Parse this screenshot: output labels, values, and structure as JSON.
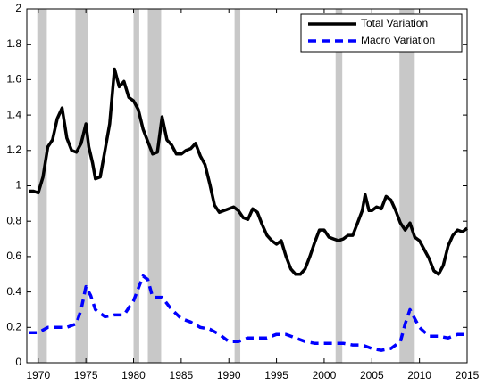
{
  "chart_data": {
    "type": "line",
    "xlim": [
      1968.8,
      2015
    ],
    "xticks": [
      1970,
      1975,
      1980,
      1985,
      1990,
      1995,
      2000,
      2005,
      2010,
      2015
    ],
    "ylim": [
      0,
      2
    ],
    "yticks": [
      0,
      0.2,
      0.4,
      0.6,
      0.8,
      1,
      1.2,
      1.4,
      1.6,
      1.8,
      2
    ],
    "legend": "upper-right",
    "shaded_color": "#c8c8c8",
    "shaded_periods": [
      [
        1969.9,
        1970.9
      ],
      [
        1973.9,
        1975.2
      ],
      [
        1980.0,
        1980.6
      ],
      [
        1981.5,
        1982.9
      ],
      [
        1990.6,
        1991.2
      ],
      [
        2001.2,
        2001.9
      ],
      [
        2007.9,
        2009.5
      ]
    ],
    "series": [
      {
        "name": "Total Variation",
        "color": "#000000",
        "dash": "solid",
        "x": [
          1969,
          1969.5,
          1970,
          1970.5,
          1971,
          1971.5,
          1972,
          1972.5,
          1973,
          1973.5,
          1974,
          1974.5,
          1975,
          1975.3,
          1975.7,
          1976,
          1976.5,
          1977,
          1977.5,
          1978,
          1978.5,
          1979,
          1979.5,
          1980,
          1980.5,
          1981,
          1981.5,
          1982,
          1982.5,
          1983,
          1983.5,
          1984,
          1984.5,
          1985,
          1985.5,
          1986,
          1986.5,
          1987,
          1987.5,
          1988,
          1988.5,
          1989,
          1989.5,
          1990,
          1990.5,
          1991,
          1991.5,
          1992,
          1992.5,
          1993,
          1993.5,
          1994,
          1994.5,
          1995,
          1995.5,
          1996,
          1996.5,
          1997,
          1997.5,
          1998,
          1998.5,
          1999,
          1999.5,
          2000,
          2000.5,
          2001,
          2001.5,
          2002,
          2002.5,
          2003,
          2003.5,
          2004,
          2004.3,
          2004.7,
          2005,
          2005.5,
          2006,
          2006.5,
          2007,
          2007.5,
          2008,
          2008.5,
          2009,
          2009.5,
          2010,
          2010.5,
          2011,
          2011.5,
          2012,
          2012.5,
          2013,
          2013.5,
          2014,
          2014.5,
          2015
        ],
        "values": [
          0.97,
          0.97,
          0.96,
          1.05,
          1.22,
          1.26,
          1.38,
          1.44,
          1.27,
          1.2,
          1.19,
          1.24,
          1.35,
          1.22,
          1.13,
          1.04,
          1.05,
          1.2,
          1.35,
          1.66,
          1.56,
          1.59,
          1.5,
          1.48,
          1.43,
          1.32,
          1.25,
          1.18,
          1.19,
          1.39,
          1.26,
          1.23,
          1.18,
          1.18,
          1.2,
          1.21,
          1.24,
          1.17,
          1.12,
          1.01,
          0.89,
          0.85,
          0.86,
          0.87,
          0.88,
          0.86,
          0.82,
          0.81,
          0.87,
          0.85,
          0.78,
          0.72,
          0.69,
          0.67,
          0.69,
          0.6,
          0.53,
          0.5,
          0.5,
          0.53,
          0.6,
          0.68,
          0.75,
          0.75,
          0.71,
          0.7,
          0.69,
          0.7,
          0.72,
          0.72,
          0.79,
          0.86,
          0.95,
          0.86,
          0.86,
          0.88,
          0.87,
          0.94,
          0.92,
          0.86,
          0.79,
          0.75,
          0.79,
          0.71,
          0.69,
          0.64,
          0.59,
          0.52,
          0.5,
          0.55,
          0.66,
          0.72,
          0.75,
          0.74,
          0.76
        ]
      },
      {
        "name": "Macro Variation",
        "color": "#0000ff",
        "dash": "dashed",
        "x": [
          1969,
          1970,
          1971,
          1972,
          1973,
          1974,
          1974.5,
          1975,
          1975.5,
          1976,
          1977,
          1978,
          1979,
          1980,
          1981,
          1981.5,
          1982,
          1983,
          1984,
          1985,
          1986,
          1987,
          1988,
          1989,
          1990,
          1991,
          1992,
          1993,
          1994,
          1995,
          1996,
          1997,
          1998,
          1999,
          2000,
          2001,
          2002,
          2003,
          2004,
          2005,
          2006,
          2007,
          2008,
          2008.5,
          2009,
          2009.5,
          2010,
          2011,
          2012,
          2013,
          2014,
          2015
        ],
        "values": [
          0.17,
          0.17,
          0.2,
          0.2,
          0.2,
          0.22,
          0.3,
          0.43,
          0.38,
          0.3,
          0.26,
          0.27,
          0.27,
          0.35,
          0.49,
          0.47,
          0.37,
          0.37,
          0.3,
          0.25,
          0.23,
          0.2,
          0.19,
          0.16,
          0.12,
          0.12,
          0.14,
          0.14,
          0.14,
          0.16,
          0.16,
          0.14,
          0.12,
          0.11,
          0.11,
          0.11,
          0.11,
          0.1,
          0.1,
          0.08,
          0.07,
          0.08,
          0.12,
          0.22,
          0.3,
          0.25,
          0.2,
          0.15,
          0.15,
          0.14,
          0.16,
          0.16
        ]
      }
    ]
  }
}
